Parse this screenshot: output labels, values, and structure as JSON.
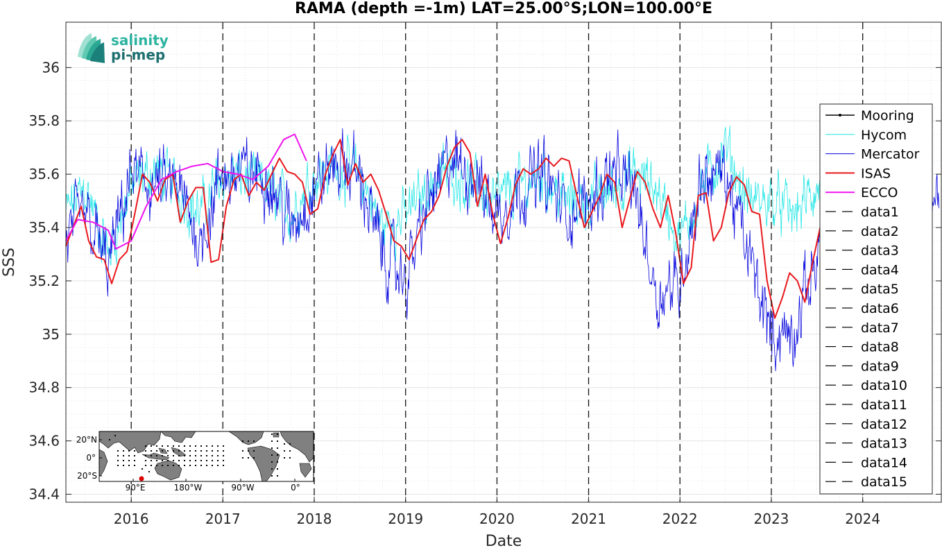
{
  "chart_data": {
    "type": "line",
    "title": "RAMA (depth =-1m) LAT=25.00°S;LON=100.00°E",
    "xlabel": "Date",
    "ylabel": "SSS",
    "xlim": [
      "2015-04-15",
      "2024-11-10"
    ],
    "ylim": [
      34.37,
      36.17
    ],
    "xticks": [
      "2016",
      "2017",
      "2018",
      "2019",
      "2020",
      "2021",
      "2022",
      "2023",
      "2024"
    ],
    "yticks": [
      34.4,
      34.6,
      34.8,
      35,
      35.2,
      35.4,
      35.6,
      35.8,
      36
    ],
    "ytick_labels": [
      "34.4",
      "34.6",
      "34.8",
      "35",
      "35.2",
      "35.4",
      "35.6",
      "35.8",
      "36"
    ],
    "grid": true,
    "year_marker_lines": [
      "2016-01-01",
      "2017-01-01",
      "2018-01-01",
      "2019-01-01",
      "2020-01-01",
      "2021-01-01",
      "2022-01-01",
      "2023-01-01",
      "2024-01-01"
    ],
    "legend_position": "right",
    "series": [
      {
        "name": "Mooring",
        "color": "#000000",
        "style": "solid-dot",
        "x": [],
        "y": []
      },
      {
        "name": "Hycom",
        "color": "#22e6e6",
        "style": "thin",
        "noisy": true,
        "x": [
          "2015-04-15",
          "2015-07-01",
          "2015-10-01",
          "2016-01-01",
          "2016-04-01",
          "2016-07-01",
          "2016-10-01",
          "2017-01-01",
          "2017-04-01",
          "2017-07-01",
          "2017-10-01",
          "2018-01-01",
          "2018-04-01",
          "2018-07-01",
          "2018-10-01",
          "2019-01-01",
          "2019-04-01",
          "2019-07-01",
          "2019-10-01",
          "2020-01-01",
          "2020-04-01",
          "2020-07-01",
          "2020-10-01",
          "2021-01-01",
          "2021-04-01",
          "2021-07-01",
          "2021-10-01",
          "2022-01-01",
          "2022-04-01",
          "2022-07-01",
          "2022-10-01",
          "2023-01-01",
          "2023-04-01",
          "2023-07-15"
        ],
        "y": [
          35.45,
          35.55,
          35.3,
          35.55,
          35.62,
          35.55,
          35.45,
          35.6,
          35.58,
          35.55,
          35.45,
          35.6,
          35.62,
          35.6,
          35.4,
          35.45,
          35.55,
          35.62,
          35.55,
          35.5,
          35.55,
          35.6,
          35.5,
          35.5,
          35.55,
          35.6,
          35.55,
          35.35,
          35.55,
          35.7,
          35.5,
          35.5,
          35.45,
          35.55
        ]
      },
      {
        "name": "Mercator",
        "color": "#0000dd",
        "style": "thin",
        "noisy": true,
        "x": [
          "2015-04-15",
          "2015-07-01",
          "2015-10-01",
          "2016-01-01",
          "2016-04-01",
          "2016-07-01",
          "2016-10-01",
          "2017-01-01",
          "2017-04-01",
          "2017-07-01",
          "2017-10-01",
          "2018-01-01",
          "2018-04-01",
          "2018-07-01",
          "2018-10-01",
          "2019-01-01",
          "2019-04-01",
          "2019-07-01",
          "2019-10-01",
          "2020-01-01",
          "2020-04-01",
          "2020-07-01",
          "2020-10-01",
          "2021-01-01",
          "2021-04-01",
          "2021-07-01",
          "2021-10-01",
          "2022-01-01",
          "2022-04-01",
          "2022-07-01",
          "2022-10-01",
          "2023-01-01",
          "2023-04-01",
          "2023-07-01",
          "2023-10-01",
          "2024-01-01",
          "2024-04-01",
          "2024-07-01",
          "2024-11-01"
        ],
        "y": [
          35.35,
          35.45,
          35.25,
          35.6,
          35.55,
          35.55,
          35.35,
          35.6,
          35.6,
          35.6,
          35.4,
          35.55,
          35.65,
          35.6,
          35.3,
          35.2,
          35.5,
          35.65,
          35.6,
          35.45,
          35.55,
          35.6,
          35.45,
          35.5,
          35.6,
          35.55,
          35.15,
          35.2,
          35.6,
          35.6,
          35.3,
          35.0,
          35.0,
          35.3,
          35.55,
          35.5,
          35.5,
          35.6,
          35.5
        ]
      },
      {
        "name": "ISAS",
        "color": "#e8171c",
        "style": "thick",
        "x": [
          "2015-04-15",
          "2015-06-15",
          "2015-07-15",
          "2015-08-15",
          "2015-09-15",
          "2015-10-15",
          "2015-11-15",
          "2015-12-15",
          "2016-01-15",
          "2016-02-15",
          "2016-03-15",
          "2016-04-15",
          "2016-05-15",
          "2016-06-15",
          "2016-07-15",
          "2016-08-15",
          "2016-09-15",
          "2016-10-15",
          "2016-11-15",
          "2016-12-15",
          "2017-01-15",
          "2017-02-15",
          "2017-03-15",
          "2017-04-15",
          "2017-05-15",
          "2017-06-15",
          "2017-07-15",
          "2017-08-15",
          "2017-09-15",
          "2017-10-15",
          "2017-11-15",
          "2017-12-15",
          "2018-01-15",
          "2018-02-15",
          "2018-03-15",
          "2018-04-15",
          "2018-05-15",
          "2018-06-15",
          "2018-07-15",
          "2018-08-15",
          "2018-09-15",
          "2018-10-15",
          "2018-11-15",
          "2018-12-15",
          "2019-01-15",
          "2019-02-15",
          "2019-03-15",
          "2019-04-15",
          "2019-05-15",
          "2019-06-15",
          "2019-07-15",
          "2019-08-15",
          "2019-09-15",
          "2019-10-15",
          "2019-11-15",
          "2019-12-15",
          "2020-01-15",
          "2020-02-15",
          "2020-03-15",
          "2020-04-15",
          "2020-05-15",
          "2020-06-15",
          "2020-07-15",
          "2020-08-15",
          "2020-09-15",
          "2020-10-15",
          "2020-11-15",
          "2020-12-15",
          "2021-01-15",
          "2021-02-15",
          "2021-03-15",
          "2021-04-15",
          "2021-05-15",
          "2021-06-15",
          "2021-07-15",
          "2021-08-15",
          "2021-09-15",
          "2021-10-15",
          "2021-11-15",
          "2021-12-15",
          "2022-01-15",
          "2022-02-15",
          "2022-03-15",
          "2022-04-15",
          "2022-05-15",
          "2022-06-15",
          "2022-07-15",
          "2022-08-15",
          "2022-09-15",
          "2022-10-15",
          "2022-11-15",
          "2022-12-15",
          "2023-01-15",
          "2023-02-15",
          "2023-03-15",
          "2023-04-15",
          "2023-05-15",
          "2023-06-15",
          "2023-07-15"
        ],
        "y": [
          35.33,
          35.48,
          35.35,
          35.29,
          35.28,
          35.19,
          35.28,
          35.31,
          35.45,
          35.6,
          35.57,
          35.5,
          35.58,
          35.6,
          35.42,
          35.5,
          35.55,
          35.55,
          35.27,
          35.28,
          35.48,
          35.58,
          35.6,
          35.52,
          35.57,
          35.54,
          35.6,
          35.66,
          35.61,
          35.6,
          35.57,
          35.45,
          35.47,
          35.6,
          35.67,
          35.73,
          35.56,
          35.64,
          35.57,
          35.6,
          35.54,
          35.45,
          35.35,
          35.33,
          35.28,
          35.36,
          35.43,
          35.46,
          35.52,
          35.63,
          35.7,
          35.73,
          35.68,
          35.48,
          35.6,
          35.45,
          35.34,
          35.44,
          35.56,
          35.62,
          35.6,
          35.62,
          35.66,
          35.63,
          35.66,
          35.65,
          35.52,
          35.4,
          35.46,
          35.52,
          35.6,
          35.57,
          35.4,
          35.51,
          35.61,
          35.57,
          35.47,
          35.4,
          35.52,
          35.38,
          35.19,
          35.25,
          35.52,
          35.53,
          35.35,
          35.4,
          35.53,
          35.59,
          35.56,
          35.46,
          35.45,
          35.2,
          35.06,
          35.14,
          35.23,
          35.2,
          35.12,
          35.27,
          35.4
        ]
      },
      {
        "name": "ECCO",
        "color": "#ee11ee",
        "style": "thick",
        "x": [
          "2015-04-15",
          "2015-06-01",
          "2015-08-01",
          "2015-10-01",
          "2015-11-01",
          "2016-01-01",
          "2016-03-01",
          "2016-05-01",
          "2016-07-01",
          "2016-09-01",
          "2016-11-01",
          "2017-01-01",
          "2017-03-01",
          "2017-05-01",
          "2017-07-01",
          "2017-09-01",
          "2017-10-15",
          "2017-12-01"
        ],
        "y": [
          35.35,
          35.43,
          35.42,
          35.39,
          35.32,
          35.35,
          35.48,
          35.58,
          35.61,
          35.63,
          35.64,
          35.61,
          35.6,
          35.58,
          35.63,
          35.73,
          35.75,
          35.65
        ]
      },
      {
        "name": "data1",
        "color": "#000000",
        "style": "dashed",
        "x": [],
        "y": []
      },
      {
        "name": "data2",
        "color": "#000000",
        "style": "dashed",
        "x": [],
        "y": []
      },
      {
        "name": "data3",
        "color": "#000000",
        "style": "dashed",
        "x": [],
        "y": []
      },
      {
        "name": "data4",
        "color": "#000000",
        "style": "dashed",
        "x": [],
        "y": []
      },
      {
        "name": "data5",
        "color": "#000000",
        "style": "dashed",
        "x": [],
        "y": []
      },
      {
        "name": "data6",
        "color": "#000000",
        "style": "dashed",
        "x": [],
        "y": []
      },
      {
        "name": "data7",
        "color": "#000000",
        "style": "dashed",
        "x": [],
        "y": []
      },
      {
        "name": "data8",
        "color": "#000000",
        "style": "dashed",
        "x": [],
        "y": []
      },
      {
        "name": "data9",
        "color": "#000000",
        "style": "dashed",
        "x": [],
        "y": []
      },
      {
        "name": "data10",
        "color": "#000000",
        "style": "dashed",
        "x": [],
        "y": []
      },
      {
        "name": "data11",
        "color": "#000000",
        "style": "dashed",
        "x": [],
        "y": []
      },
      {
        "name": "data12",
        "color": "#000000",
        "style": "dashed",
        "x": [],
        "y": []
      },
      {
        "name": "data13",
        "color": "#000000",
        "style": "dashed",
        "x": [],
        "y": []
      },
      {
        "name": "data14",
        "color": "#000000",
        "style": "dashed",
        "x": [],
        "y": []
      },
      {
        "name": "data15",
        "color": "#000000",
        "style": "dashed",
        "x": [],
        "y": []
      }
    ]
  },
  "logo": {
    "line1": "salinity",
    "line2": "pi-mep"
  },
  "inset_map": {
    "lat_labels": [
      "20°N",
      "0°",
      "20°S"
    ],
    "lon_labels": [
      "90°E",
      "180°W",
      "90°W",
      "0°"
    ],
    "land_color": "#808080",
    "ocean_color": "#ffffff",
    "site_marker_color": "#dd0000"
  }
}
